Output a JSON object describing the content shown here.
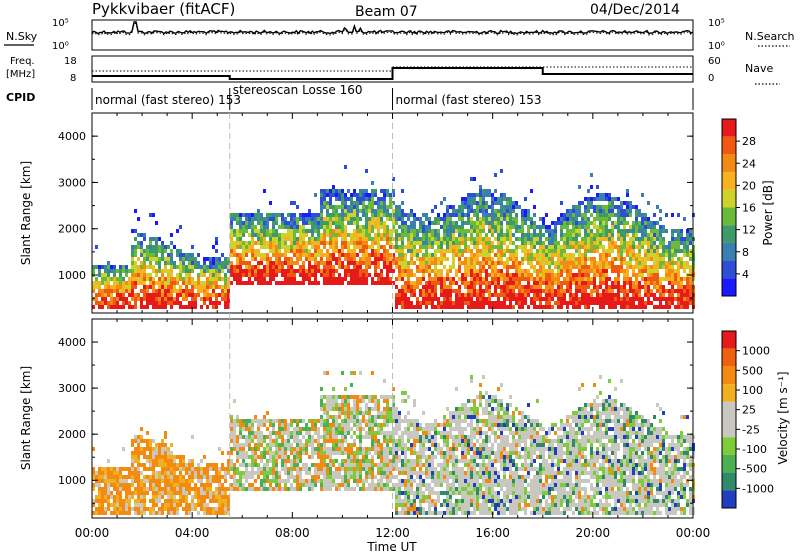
{
  "header": {
    "station": "Pykkvibaer (fitACF)",
    "beam": "Beam 07",
    "date": "04/Dec/2014"
  },
  "top_panels": {
    "nsky": {
      "label": "N.Sky",
      "ticks": [
        "10^5",
        "10^0"
      ],
      "right_label": "N.Search",
      "right_ticks": [
        "10^5",
        "10^0"
      ]
    },
    "freq": {
      "label_line1": "Freq.",
      "label_line2": "[MHz]",
      "ticks": [
        "18",
        "8"
      ],
      "right_label": "Nave",
      "right_ticks": [
        "60",
        "0"
      ]
    },
    "cpid": {
      "label": "CPID",
      "segments": [
        {
          "text": "normal (fast stereo) 153",
          "start_hour": 0,
          "end_hour": 5.5
        },
        {
          "text": "stereoscan Losse 160",
          "start_hour": 5.5,
          "end_hour": 12
        },
        {
          "text": "normal (fast stereo) 153",
          "start_hour": 12,
          "end_hour": 24
        }
      ]
    }
  },
  "chart_data": [
    {
      "type": "heatmap",
      "ylabel": "Slant Range [km]",
      "ylim": [
        180,
        4500
      ],
      "y_ticks": [
        "1000",
        "2000",
        "3000",
        "4000"
      ],
      "xlim_hours": [
        0,
        24
      ],
      "colorbar": {
        "label": "Power [dB]",
        "ticks": [
          "4",
          "8",
          "12",
          "16",
          "20",
          "24",
          "28"
        ],
        "colors": [
          "#1a1aff",
          "#2c4fd6",
          "#3a7fb0",
          "#3f9a6a",
          "#6bbb3a",
          "#cfd22a",
          "#f7b21e",
          "#f48a14",
          "#ef5a10",
          "#e61a1a"
        ]
      }
    },
    {
      "type": "heatmap",
      "ylabel": "Slant Range [km]",
      "ylim": [
        180,
        4500
      ],
      "y_ticks": [
        "1000",
        "2000",
        "3000",
        "4000"
      ],
      "xlim_hours": [
        0,
        24
      ],
      "colorbar": {
        "label": "Velocity [m s⁻¹]",
        "ticks": [
          "1000",
          "500",
          "100",
          "25",
          "-25",
          "-100",
          "-500",
          "-1000"
        ],
        "colors": [
          "#1f3fbf",
          "#2f8a6a",
          "#4caf50",
          "#7ccc3c",
          "#c8c8c0",
          "#c8c8c0",
          "#f0b020",
          "#f48a10",
          "#ef6010",
          "#e61a1a"
        ]
      }
    }
  ],
  "x_axis": {
    "ticks": [
      "00:00",
      "04:00",
      "08:00",
      "12:00",
      "16:00",
      "20:00",
      "00:00"
    ],
    "label": "Time UT"
  }
}
